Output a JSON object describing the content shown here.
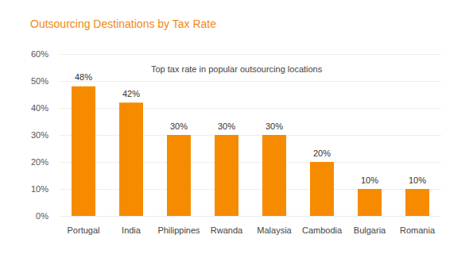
{
  "chart_data": {
    "type": "bar",
    "title": "Outsourcing Destinations by Tax Rate",
    "subtitle": "Top tax rate in popular outsourcing locations",
    "categories": [
      "Portugal",
      "India",
      "Philippines",
      "Rwanda",
      "Malaysia",
      "Cambodia",
      "Bulgaria",
      "Romania"
    ],
    "values": [
      48,
      42,
      30,
      30,
      30,
      20,
      10,
      10
    ],
    "value_labels": [
      "48%",
      "42%",
      "30%",
      "30%",
      "30%",
      "20%",
      "10%",
      "10%"
    ],
    "color": "#f78b00",
    "ylim": [
      0,
      60
    ],
    "yticks": [
      {
        "value": 0,
        "label": "0%"
      },
      {
        "value": 10,
        "label": "10%"
      },
      {
        "value": 20,
        "label": "20%"
      },
      {
        "value": 30,
        "label": "30%"
      },
      {
        "value": 40,
        "label": "40%"
      },
      {
        "value": 50,
        "label": "50%"
      },
      {
        "value": 60,
        "label": "60%"
      }
    ],
    "grid": true,
    "data_labels": true
  }
}
